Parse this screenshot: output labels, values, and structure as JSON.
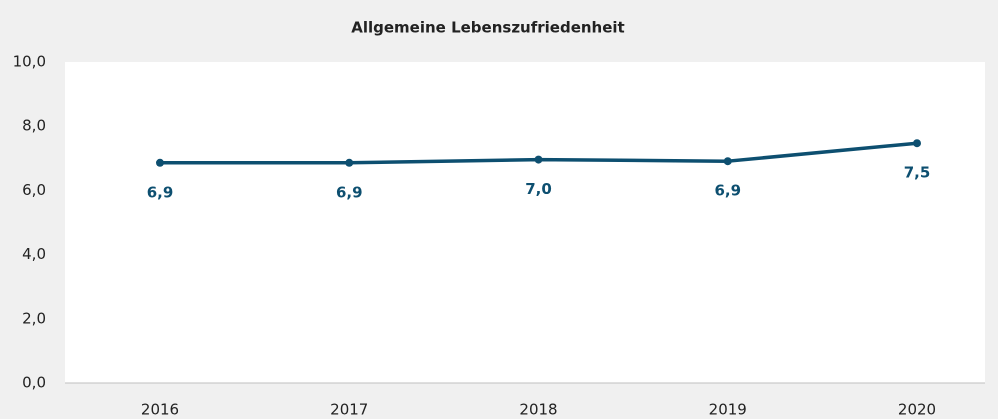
{
  "chart_data": {
    "type": "line",
    "title": "Allgemeine Lebenszufriedenheit",
    "categories": [
      "2016",
      "2017",
      "2018",
      "2019",
      "2020"
    ],
    "series": [
      {
        "name": "Allgemeine Lebenszufriedenheit",
        "color": "#0d4f70",
        "values": [
          6.86,
          6.86,
          6.96,
          6.91,
          7.47
        ],
        "value_labels": [
          "6,9",
          "6,9",
          "7,0",
          "6,9",
          "7,5"
        ]
      }
    ],
    "ylim": [
      0,
      10
    ],
    "yticks": [
      {
        "value": 0,
        "label": "0,0"
      },
      {
        "value": 2,
        "label": "2,0"
      },
      {
        "value": 4,
        "label": "4,0"
      },
      {
        "value": 6,
        "label": "6,0"
      },
      {
        "value": 8,
        "label": "8,0"
      },
      {
        "value": 10,
        "label": "10,0"
      }
    ],
    "grid": false
  }
}
